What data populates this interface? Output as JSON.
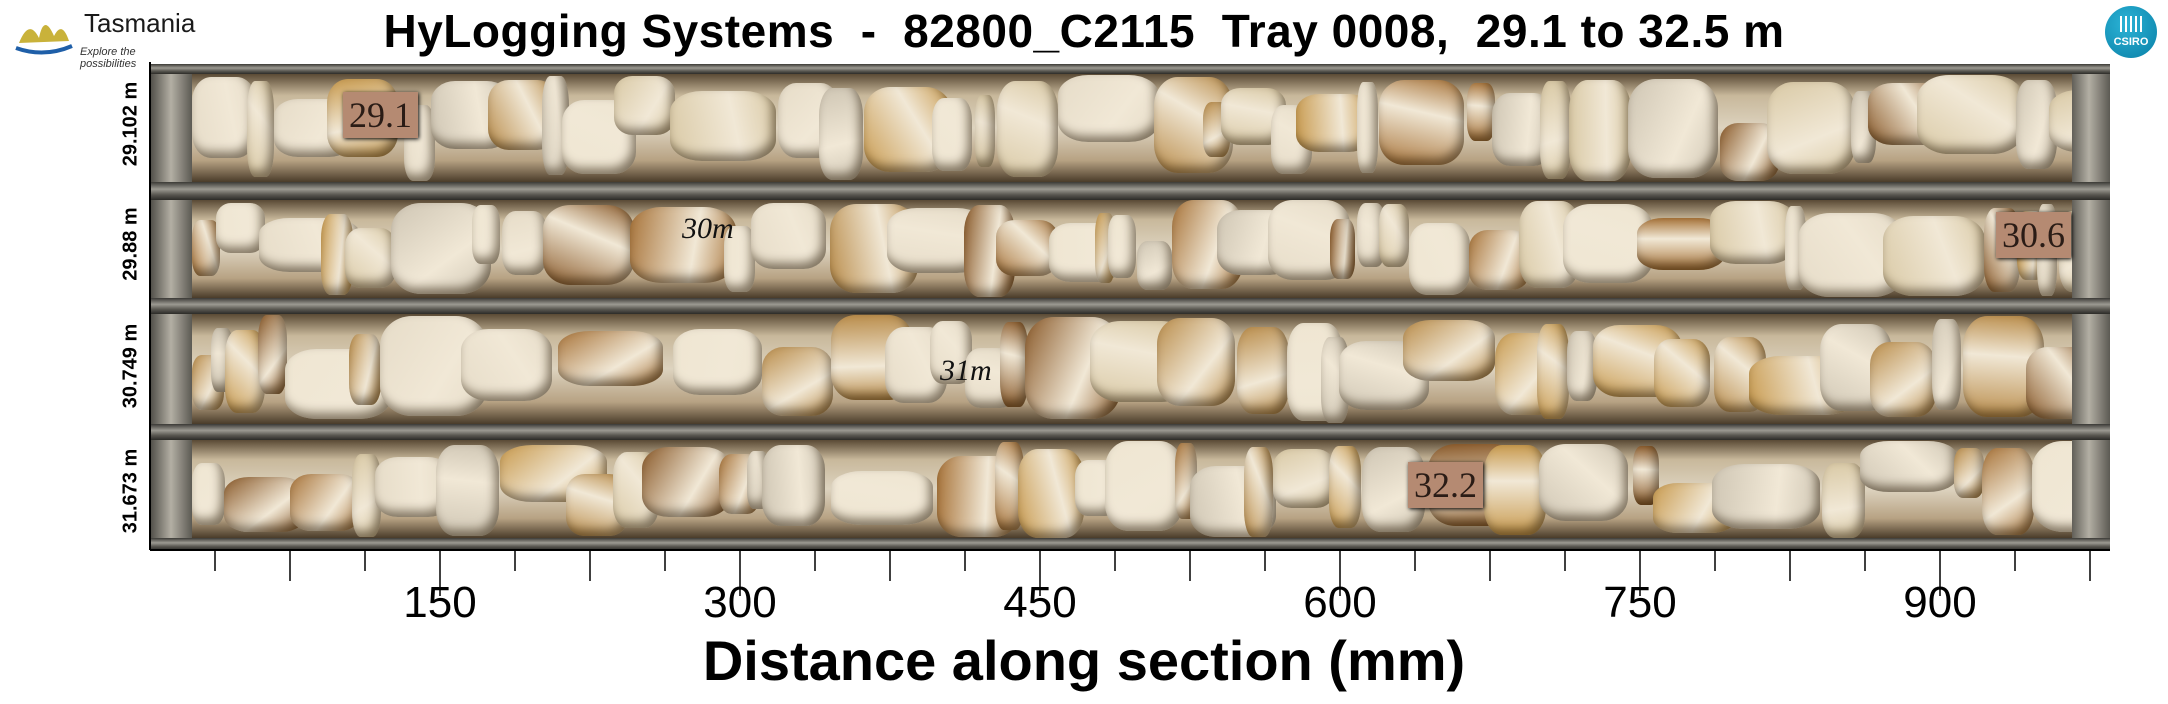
{
  "header": {
    "title": "HyLogging Systems  -  82800_C2115  Tray 0008,  29.1 to 32.5 m",
    "left_logo": {
      "name": "Tasmania",
      "tagline": "Explore the possibilities"
    },
    "right_logo": {
      "name": "CSIRO",
      "color": "#1a9cc4"
    }
  },
  "photo": {
    "depth_tags": [
      "29.1",
      "30.6",
      "32.2"
    ],
    "handwritten_marks": [
      "30m",
      "31m"
    ]
  },
  "chart_data": {
    "type": "image",
    "title": "HyLogging Systems  -  82800_C2115  Tray 0008,  29.1 to 32.5 m",
    "xlabel": "Distance along section (mm)",
    "xlim": [
      0,
      985
    ],
    "x_major_ticks": [
      150,
      300,
      450,
      600,
      750,
      900
    ],
    "x_major_tick_labels": [
      "150",
      "300",
      "450",
      "600",
      "750",
      "900"
    ],
    "x_minor_tick_step": 37.5,
    "row_depth_labels": [
      "29.102 m",
      "29.88 m",
      "30.749 m",
      "31.673 m"
    ],
    "depth_range_m": [
      29.1,
      32.5
    ]
  }
}
